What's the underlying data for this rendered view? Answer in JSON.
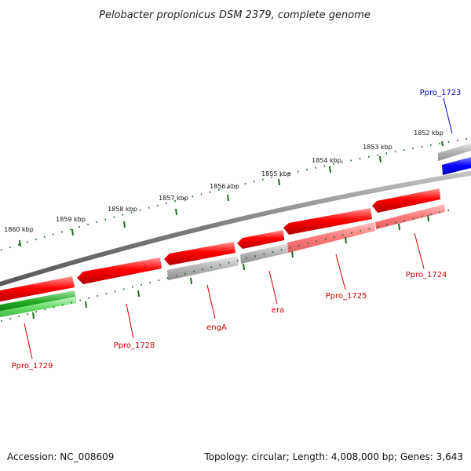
{
  "title": "Pelobacter propionicus DSM 2379, complete genome",
  "footer": {
    "accession": "Accession: NC_008609",
    "summary": "Topology: circular; Length: 4,008,000 bp; Genes: 3,643"
  },
  "colors": {
    "forward_gene": "#ff0000",
    "reverse_gene": "#ff7070",
    "gray_gene": "#b8b8b8",
    "blue_gene": "#0000ff",
    "green_gene": "#22aa22",
    "backbone": "#777777",
    "tick": "#1a6e1a",
    "label_red": "#cc0000",
    "label_blue": "#0000cc"
  },
  "scale_labels": [
    "1852 kbp",
    "1853 kbp",
    "1854 kbp",
    "1855 kbp",
    "1856 kbp",
    "1857 kbp",
    "1858 kbp",
    "1859 kbp",
    "1860 kbp"
  ],
  "gene_labels": [
    {
      "text": "Ppro_1723",
      "color": "blue"
    },
    {
      "text": "Ppro_1724",
      "color": "red"
    },
    {
      "text": "Ppro_1725",
      "color": "red"
    },
    {
      "text": "era",
      "color": "red"
    },
    {
      "text": "engA",
      "color": "red"
    },
    {
      "text": "Ppro_1728",
      "color": "red"
    },
    {
      "text": "Ppro_1729",
      "color": "red"
    }
  ]
}
